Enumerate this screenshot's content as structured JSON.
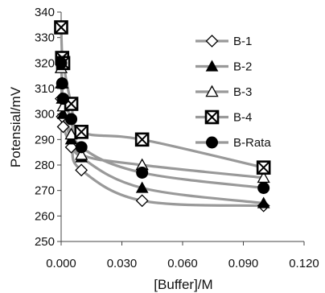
{
  "chart_data": {
    "type": "line",
    "title": "",
    "xlabel": "[Buffer]/M",
    "ylabel": "Potensial/mV",
    "xlim": [
      0,
      0.12
    ],
    "ylim": [
      250,
      340
    ],
    "xticks": [
      0,
      0.03,
      0.06,
      0.09,
      0.12
    ],
    "xtick_labels": [
      "0.000",
      "0.030",
      "0.060",
      "0.090",
      "0.120"
    ],
    "yticks": [
      250,
      260,
      270,
      280,
      290,
      300,
      310,
      320,
      330,
      340
    ],
    "ytick_labels": [
      "250",
      "260",
      "270",
      "280",
      "290",
      "300",
      "310",
      "320",
      "330",
      "340"
    ],
    "grid": false,
    "legend_position": "right",
    "x": [
      0,
      0.0005,
      0.001,
      0.005,
      0.01,
      0.04,
      0.1
    ],
    "series": [
      {
        "name": "B-1",
        "marker": "diamond-open",
        "values": [
          306,
          299,
          295,
          287,
          278,
          266,
          264
        ]
      },
      {
        "name": "B-2",
        "marker": "triangle-filled",
        "values": [
          312,
          306,
          300,
          290,
          283,
          271,
          265
        ]
      },
      {
        "name": "B-3",
        "marker": "triangle-open",
        "values": [
          318,
          312,
          303,
          292,
          284,
          280,
          275
        ]
      },
      {
        "name": "B-4",
        "marker": "square-x",
        "values": [
          334,
          322,
          320,
          304,
          293,
          290,
          279
        ]
      },
      {
        "name": "B-Rata",
        "marker": "circle-filled",
        "values": [
          320,
          312,
          306,
          298,
          287,
          277,
          271
        ]
      }
    ],
    "colors": {
      "line": "#999999",
      "marker": "#000000"
    }
  }
}
